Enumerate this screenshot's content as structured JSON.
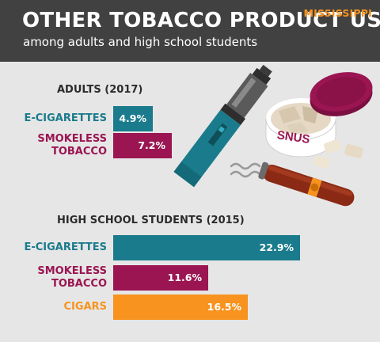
{
  "header": {
    "title": "OTHER TOBACCO PRODUCT USE",
    "subtitle": "among adults and high school students",
    "state": "MISSISSIPPI"
  },
  "colors": {
    "header_bg": "#414141",
    "background": "#e6e6e6",
    "teal": "#1a7b8c",
    "maroon": "#9b1552",
    "orange": "#f7931e"
  },
  "chart_data": [
    {
      "type": "bar",
      "orientation": "horizontal",
      "title": "ADULTS (2017)",
      "categories": [
        "E-CIGARETTES",
        "SMOKELESS\nTOBACCO"
      ],
      "values": [
        4.9,
        7.2
      ],
      "value_labels": [
        "4.9%",
        "7.2%"
      ],
      "unit": "%",
      "colors": [
        "#1a7b8c",
        "#9b1552"
      ]
    },
    {
      "type": "bar",
      "orientation": "horizontal",
      "title": "HIGH SCHOOL STUDENTS (2015)",
      "categories": [
        "E-CIGARETTES",
        "SMOKELESS\nTOBACCO",
        "CIGARS"
      ],
      "values": [
        22.9,
        11.6,
        16.5
      ],
      "value_labels": [
        "22.9%",
        "11.6%",
        "16.5%"
      ],
      "unit": "%",
      "colors": [
        "#1a7b8c",
        "#9b1552",
        "#f7931e"
      ]
    }
  ],
  "illustration": {
    "snus_can_label": "SNUS"
  }
}
